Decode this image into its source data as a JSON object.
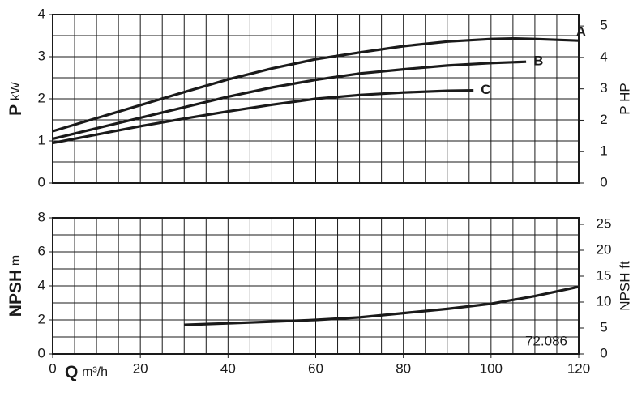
{
  "chart_data": [
    {
      "type": "line",
      "ylabel_symbol": "P",
      "ylabel_unit": "kW",
      "y2label": "P HP",
      "xlim": [
        0,
        120
      ],
      "xgrid": 5,
      "ylim": [
        0,
        4
      ],
      "yticks": [
        0,
        1,
        2,
        3,
        4
      ],
      "ygrid": 0.5,
      "y2lim": [
        0,
        5.364
      ],
      "y2ticks": [
        0,
        1,
        2,
        3,
        4,
        5
      ],
      "series": [
        {
          "name": "A",
          "color": "#1a1a1a",
          "x": [
            0,
            10,
            20,
            30,
            40,
            50,
            60,
            70,
            80,
            90,
            100,
            105,
            110,
            120
          ],
          "values": [
            1.23,
            1.54,
            1.85,
            2.16,
            2.46,
            2.72,
            2.94,
            3.1,
            3.25,
            3.36,
            3.42,
            3.43,
            3.42,
            3.38
          ]
        },
        {
          "name": "B",
          "color": "#1a1a1a",
          "x": [
            0,
            10,
            20,
            30,
            40,
            50,
            60,
            70,
            80,
            90,
            100,
            108
          ],
          "values": [
            1.05,
            1.3,
            1.55,
            1.8,
            2.05,
            2.27,
            2.45,
            2.6,
            2.7,
            2.79,
            2.85,
            2.88
          ]
        },
        {
          "name": "C",
          "color": "#1a1a1a",
          "x": [
            0,
            10,
            20,
            30,
            40,
            50,
            60,
            70,
            80,
            90,
            96
          ],
          "values": [
            0.95,
            1.15,
            1.35,
            1.53,
            1.7,
            1.86,
            2.0,
            2.09,
            2.15,
            2.19,
            2.2
          ]
        }
      ]
    },
    {
      "type": "line",
      "ylabel_symbol": "NPSH",
      "ylabel_unit": "m",
      "y2label": "NPSH ft",
      "xlabel_symbol": "Q",
      "xlabel_unit": "m³/h",
      "annotation": "72.086",
      "xlim": [
        0,
        120
      ],
      "xticks": [
        0,
        20,
        40,
        60,
        80,
        100,
        120
      ],
      "xgrid": 5,
      "ylim": [
        0,
        8
      ],
      "yticks": [
        0,
        2,
        4,
        6,
        8
      ],
      "ygrid": 1,
      "y2lim": [
        0,
        26.25
      ],
      "y2ticks": [
        0,
        5,
        10,
        15,
        20,
        25
      ],
      "series": [
        {
          "color": "#1a1a1a",
          "x": [
            30,
            40,
            50,
            60,
            70,
            80,
            90,
            100,
            110,
            120
          ],
          "values": [
            1.71,
            1.8,
            1.9,
            2.0,
            2.15,
            2.4,
            2.65,
            2.95,
            3.4,
            3.95
          ]
        }
      ]
    }
  ]
}
